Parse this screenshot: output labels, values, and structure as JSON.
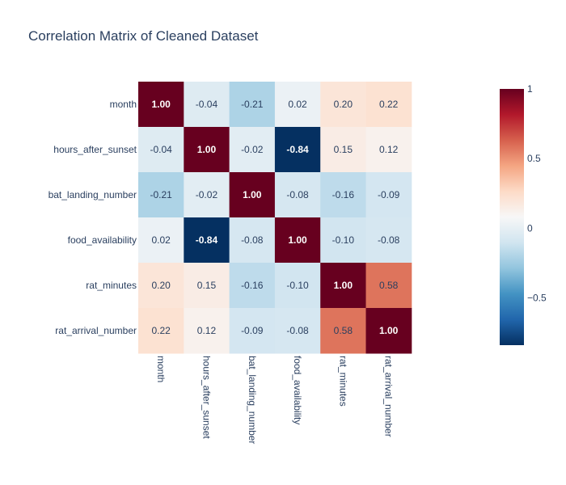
{
  "chart_data": {
    "type": "heatmap",
    "title": "Correlation Matrix of Cleaned Dataset",
    "variables": [
      "month",
      "hours_after_sunset",
      "bat_landing_number",
      "food_availability",
      "rat_minutes",
      "rat_arrival_number"
    ],
    "matrix": [
      [
        1.0,
        -0.04,
        -0.21,
        0.02,
        0.2,
        0.22
      ],
      [
        -0.04,
        1.0,
        -0.02,
        -0.84,
        0.15,
        0.12
      ],
      [
        -0.21,
        -0.02,
        1.0,
        -0.08,
        -0.16,
        -0.09
      ],
      [
        0.02,
        -0.84,
        -0.08,
        1.0,
        -0.1,
        -0.08
      ],
      [
        0.2,
        0.15,
        -0.16,
        -0.1,
        1.0,
        0.58
      ],
      [
        0.22,
        0.12,
        -0.09,
        -0.08,
        0.58,
        1.0
      ]
    ],
    "value_format": "0.00",
    "colorscale": "RdBu",
    "colorbar": {
      "range": [
        -0.84,
        1.0
      ],
      "ticks": [
        -0.5,
        0,
        0.5,
        1
      ],
      "tick_labels": [
        "−0.5",
        "0",
        "0.5",
        "1"
      ]
    },
    "x_tick_angle": 90,
    "grid": false
  }
}
